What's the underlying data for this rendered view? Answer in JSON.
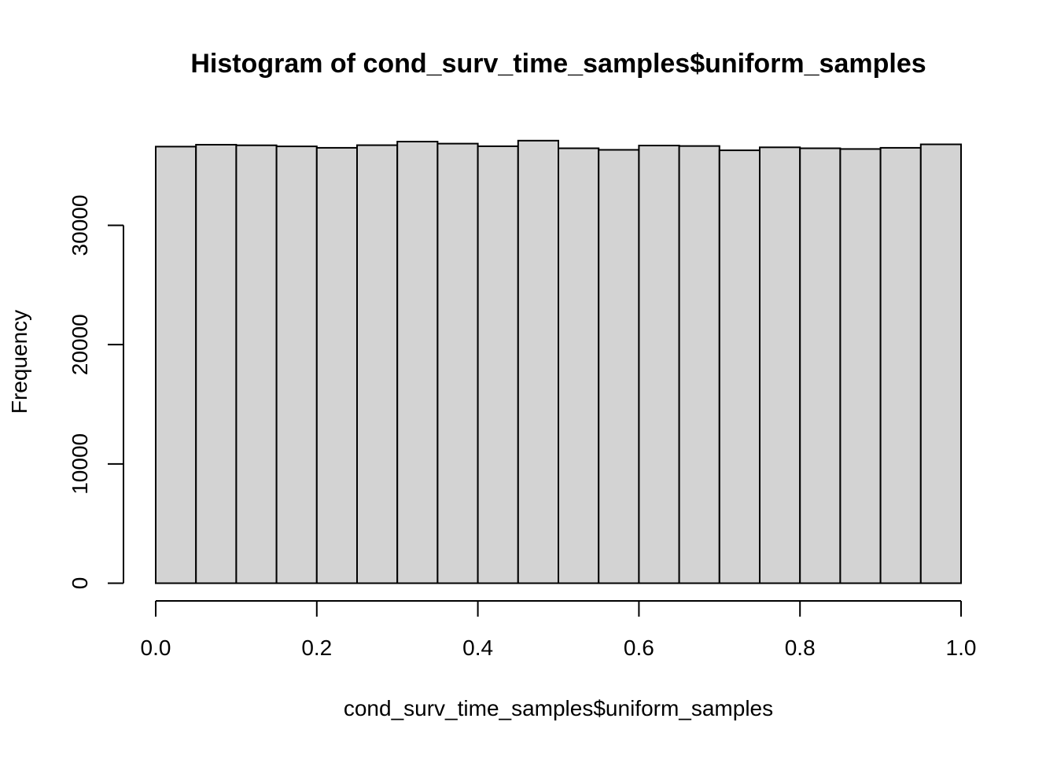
{
  "chart_data": {
    "type": "bar",
    "subtype": "histogram",
    "title": "Histogram of cond_surv_time_samples$uniform_samples",
    "xlabel": "cond_surv_time_samples$uniform_samples",
    "ylabel": "Frequency",
    "bin_edges": [
      0.0,
      0.05,
      0.1,
      0.15,
      0.2,
      0.25,
      0.3,
      0.35,
      0.4,
      0.45,
      0.5,
      0.55,
      0.6,
      0.65,
      0.7,
      0.75,
      0.8,
      0.85,
      0.9,
      0.95,
      1.0
    ],
    "values": [
      36600,
      36760,
      36710,
      36620,
      36500,
      36720,
      37020,
      36850,
      36630,
      37100,
      36460,
      36330,
      36690,
      36650,
      36290,
      36540,
      36460,
      36400,
      36500,
      36790
    ],
    "xlim": [
      0.0,
      1.0
    ],
    "ylim": [
      0,
      37100
    ],
    "x_ticks": [
      0.0,
      0.2,
      0.4,
      0.6,
      0.8,
      1.0
    ],
    "x_tick_labels": [
      "0.0",
      "0.2",
      "0.4",
      "0.6",
      "0.8",
      "1.0"
    ],
    "y_ticks": [
      0,
      10000,
      20000,
      30000
    ],
    "y_tick_labels": [
      "0",
      "10000",
      "20000",
      "30000"
    ],
    "grid": false,
    "legend": "none",
    "colors": {
      "bar_fill": "#d3d3d3",
      "bar_stroke": "#000000",
      "axis": "#000000"
    }
  }
}
